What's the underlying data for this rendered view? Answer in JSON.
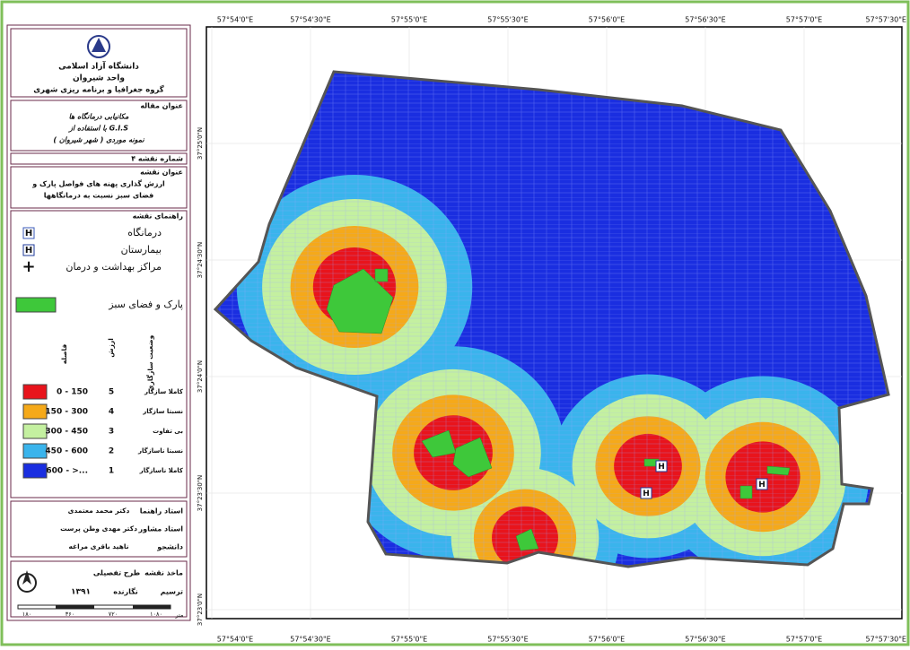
{
  "university": {
    "name": "دانشگاه آزاد اسلامی",
    "branch": "واحد شیروان",
    "department": "گروه جغرافیا و برنامه ریزی شهری"
  },
  "article": {
    "heading": "عنوان مقاله",
    "lines": [
      "مکانیابی درمانگاه ها",
      "با استفاده از G.I.S",
      "نمونه موردی ( شهر شیروان )"
    ]
  },
  "map_number": "شماره نقشه ۴",
  "map_title": {
    "heading": "عنوان نقشه",
    "lines": [
      "ارزش گذاری پهنه های فواصل پارک و",
      "فضای سبز نسبت به درمانگاهها"
    ]
  },
  "legend": {
    "heading": "راهنمای نقشه",
    "symbols": [
      {
        "icon": "H",
        "label": "درمانگاه",
        "color": "#3a5ab8"
      },
      {
        "icon": "H",
        "label": "بیمارستان",
        "color": "#1d3a9a"
      },
      {
        "icon": "+",
        "label": "مراکز بهداشت و درمان",
        "color": "#2a6ad8"
      }
    ],
    "park": {
      "label": "پارک و فضای سبز",
      "color": "#3ec83a"
    },
    "columns": [
      "فاصله",
      "ارزش",
      "وضعیت سازگاری"
    ],
    "classes": [
      {
        "range": "0 - 150",
        "value": "5",
        "status": "کاملا سازگار",
        "color": "#e8141c"
      },
      {
        "range": "150 - 300",
        "value": "4",
        "status": "نسبتا سازگار",
        "color": "#f5a91a"
      },
      {
        "range": "300 - 450",
        "value": "3",
        "status": "بی تفاوت",
        "color": "#c4f0a0"
      },
      {
        "range": "450 - 600",
        "value": "2",
        "status": "نسبتا ناسازگار",
        "color": "#3ab4ec"
      },
      {
        "range": "600 - >...",
        "value": "1",
        "status": "کاملا ناسازگار",
        "color": "#1a2ee0"
      }
    ]
  },
  "credits": [
    {
      "role": "استاد راهنما",
      "name": "دکتر محمد معتمدی"
    },
    {
      "role": "استاد مشاور",
      "name": "دکتر مهدی وطن پرست"
    },
    {
      "role": "دانشجو",
      "name": "ناهید باقری مراغه"
    }
  ],
  "source": {
    "label": "ماخذ نقشه",
    "value": "طرح تفصیلی"
  },
  "drawing": {
    "label": "ترسیم",
    "value": "نگارنده"
  },
  "year": "۱۳۹۱",
  "scale": {
    "ticks": [
      "۱۸۰",
      "۳۶۰",
      "۷۲۰",
      "۱۰۸۰"
    ],
    "unit": "متر"
  },
  "map": {
    "lon_labels": [
      "57°54'0\"E",
      "57°54'30\"E",
      "57°55'0\"E",
      "57°55'30\"E",
      "57°56'0\"E",
      "57°56'30\"E",
      "57°57'0\"E",
      "57°57'30\"E"
    ],
    "lat_labels": [
      "37°25'0\"N",
      "37°24'30\"N",
      "37°24'0\"N",
      "37°23'30\"N",
      "37°23'0\"N"
    ],
    "facility_markers": [
      "H",
      "H",
      "H"
    ]
  }
}
